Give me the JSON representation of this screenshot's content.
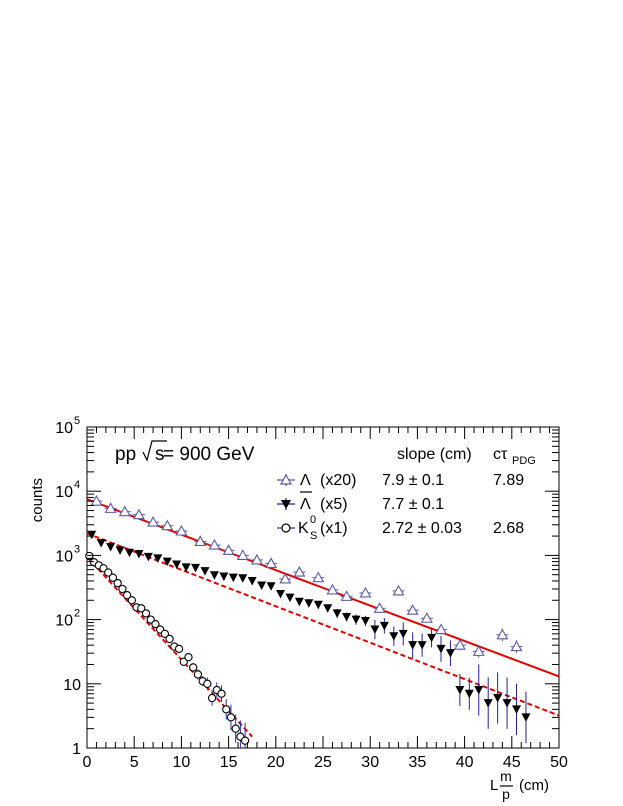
{
  "chart_data": {
    "type": "scatter",
    "title": "",
    "xlabel": {
      "pre": "L",
      "num": "m",
      "den": "p",
      "post": "(cm)"
    },
    "ylabel": "counts",
    "xlim": [
      0,
      50
    ],
    "ylim": [
      1,
      100000
    ],
    "yscale": "log",
    "grid": false,
    "legend_position": "top-right",
    "x_ticks": [
      "0",
      "5",
      "10",
      "15",
      "20",
      "25",
      "30",
      "35",
      "40",
      "45",
      "50"
    ],
    "y_ticks": [
      {
        "v": 1,
        "base": "1",
        "exp": ""
      },
      {
        "v": 10,
        "base": "10",
        "exp": ""
      },
      {
        "v": 100,
        "base": "10",
        "exp": "2"
      },
      {
        "v": 1000,
        "base": "10",
        "exp": "3"
      },
      {
        "v": 10000,
        "base": "10",
        "exp": "4"
      },
      {
        "v": 100000,
        "base": "10",
        "exp": "5"
      }
    ],
    "annotation": {
      "pre": "pp ",
      "root": "s",
      "post": " = 900 GeV"
    },
    "table_header": {
      "slope": "slope (cm)",
      "ctau": "cτ",
      "ctau_sub": "PDG"
    },
    "series": [
      {
        "name": "Λ",
        "scale": "(x20)",
        "marker": "triangle-open",
        "color": "#5a5aa0",
        "slope": "7.9 ± 0.1",
        "ctau": "7.89",
        "fit": {
          "x0": 0,
          "x1": 50,
          "y0": 7500,
          "y1": 13
        },
        "x": [
          1,
          2.5,
          4,
          5.5,
          7,
          8.5,
          10,
          12,
          13.5,
          15,
          16.5,
          18,
          19.5,
          21,
          22.5,
          24.5,
          26,
          27.5,
          29.5,
          31,
          33,
          34.5,
          36,
          37.5,
          39.5,
          41.5,
          44,
          45.5
        ],
        "y": [
          7000,
          5400,
          4800,
          4300,
          3300,
          2900,
          2400,
          1650,
          1450,
          1200,
          1000,
          850,
          750,
          430,
          550,
          450,
          290,
          230,
          260,
          150,
          280,
          140,
          105,
          70,
          40,
          32,
          58,
          38
        ],
        "err": [
          0.05,
          0.05,
          0.05,
          0.05,
          0.05,
          0.05,
          0.05,
          0.05,
          0.05,
          0.05,
          0.05,
          0.05,
          0.05,
          0.05,
          0.05,
          0.05,
          0.05,
          0.05,
          0.05,
          0.06,
          0.06,
          0.06,
          0.06,
          0.08,
          0.08,
          0.1,
          0.1,
          0.1
        ]
      },
      {
        "name": "Λ",
        "overline": true,
        "scale": "(x5)",
        "marker": "triangle-down-filled",
        "color": "#000000",
        "errcolor": "#2020a0",
        "slope": "7.7 ± 0.1",
        "ctau": "",
        "fit": {
          "x0": 0,
          "x1": 50,
          "y0": 2200,
          "y1": 3.2
        },
        "x": [
          0.5,
          1.5,
          2.5,
          3.5,
          4.5,
          5.5,
          6.5,
          7.5,
          8.5,
          9.5,
          10.5,
          11.5,
          12.5,
          13.5,
          14.5,
          15.5,
          16.5,
          17.5,
          18.5,
          19.5,
          20.5,
          21.5,
          22.5,
          23.5,
          24.5,
          25.5,
          26.5,
          27.5,
          28.5,
          29.5,
          30.5,
          31.5,
          32.5,
          33.5,
          34.5,
          35.5,
          36.5,
          37.5,
          38.5,
          39.5,
          40.5,
          41.5,
          42.5,
          43.5,
          44.5,
          45.5,
          46.5
        ],
        "y": [
          2100,
          1550,
          1350,
          1200,
          1100,
          1050,
          950,
          900,
          800,
          720,
          650,
          640,
          570,
          490,
          470,
          450,
          440,
          400,
          340,
          330,
          250,
          220,
          190,
          180,
          170,
          150,
          125,
          110,
          100,
          95,
          70,
          80,
          55,
          60,
          40,
          40,
          52,
          35,
          30,
          8,
          7,
          8,
          5,
          6,
          5,
          4,
          3
        ],
        "err": [
          0.02,
          0.02,
          0.02,
          0.03,
          0.03,
          0.03,
          0.03,
          0.03,
          0.03,
          0.03,
          0.03,
          0.03,
          0.03,
          0.04,
          0.04,
          0.04,
          0.04,
          0.04,
          0.04,
          0.05,
          0.05,
          0.05,
          0.06,
          0.06,
          0.06,
          0.06,
          0.07,
          0.07,
          0.08,
          0.08,
          0.15,
          0.12,
          0.15,
          0.18,
          0.2,
          0.18,
          0.15,
          0.2,
          0.2,
          0.25,
          0.25,
          0.4,
          0.4,
          0.4,
          0.4,
          0.4,
          0.4
        ]
      },
      {
        "name": "K",
        "sup": "0",
        "sub": "S",
        "scale": "(x1)",
        "marker": "circle-open",
        "color": "#000000",
        "errcolor": "#3030a0",
        "slope": "2.72 ± 0.03",
        "ctau": "2.68",
        "fit": {
          "x0": 0,
          "x1": 17.5,
          "y0": 950,
          "y1": 1.5
        },
        "x": [
          0.25,
          0.75,
          1.25,
          1.75,
          2.25,
          2.75,
          3.25,
          3.75,
          4.25,
          4.75,
          5.25,
          5.75,
          6.25,
          6.75,
          7.25,
          7.75,
          8.25,
          8.75,
          9.25,
          9.75,
          10.25,
          10.75,
          11.25,
          11.75,
          12.25,
          12.75,
          13.25,
          13.75,
          14.25,
          14.75,
          15.25,
          15.75,
          16.25,
          16.75
        ],
        "y": [
          980,
          780,
          700,
          630,
          540,
          450,
          370,
          300,
          240,
          200,
          155,
          150,
          125,
          100,
          85,
          70,
          60,
          50,
          38,
          35,
          22,
          26,
          18,
          14,
          11,
          10,
          6,
          8,
          7,
          4,
          3,
          2,
          1.5,
          1.3
        ],
        "err": [
          0.02,
          0.02,
          0.02,
          0.02,
          0.02,
          0.02,
          0.02,
          0.02,
          0.03,
          0.03,
          0.03,
          0.03,
          0.03,
          0.03,
          0.04,
          0.04,
          0.04,
          0.05,
          0.05,
          0.05,
          0.06,
          0.06,
          0.07,
          0.08,
          0.08,
          0.1,
          0.12,
          0.12,
          0.13,
          0.16,
          0.2,
          0.22,
          0.25,
          0.28
        ]
      }
    ]
  }
}
